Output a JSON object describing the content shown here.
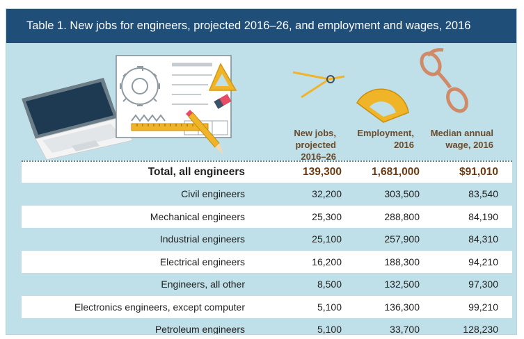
{
  "title": "Table 1. New jobs for engineers, projected 2016–26, and employment and wages, 2016",
  "columns": {
    "new_jobs": [
      "New jobs, projected",
      "2016–26"
    ],
    "employment": [
      "Employment,",
      "2016"
    ],
    "wage": [
      "Median annual",
      "wage, 2016"
    ]
  },
  "chart_data": {
    "type": "table",
    "title": "Table 1. New jobs for engineers, projected 2016–26, and employment and wages, 2016",
    "headers": [
      "",
      "New jobs, projected 2016–26",
      "Employment, 2016",
      "Median annual wage, 2016"
    ],
    "rows": [
      {
        "label": "Total, all engineers",
        "new_jobs": "139,300",
        "employment": "1,681,000",
        "wage": "$91,010"
      },
      {
        "label": "Civil engineers",
        "new_jobs": "32,200",
        "employment": "303,500",
        "wage": "83,540"
      },
      {
        "label": "Mechanical engineers",
        "new_jobs": "25,300",
        "employment": "288,800",
        "wage": "84,190"
      },
      {
        "label": "Industrial engineers",
        "new_jobs": "25,100",
        "employment": "257,900",
        "wage": "84,310"
      },
      {
        "label": "Electrical engineers",
        "new_jobs": "16,200",
        "employment": "188,300",
        "wage": "94,210"
      },
      {
        "label": "Engineers, all other",
        "new_jobs": "8,500",
        "employment": "132,500",
        "wage": "97,300"
      },
      {
        "label": "Electronics engineers, except computer",
        "new_jobs": "5,100",
        "employment": "136,300",
        "wage": "99,210"
      },
      {
        "label": "Petroleum engineers",
        "new_jobs": "5,100",
        "employment": "33,700",
        "wage": "128,230"
      }
    ]
  },
  "colors": {
    "title_bg": "#1f4e79",
    "panel_bg": "#bfe0e8",
    "header_text": "#6b4b2a"
  },
  "illustration_icons": [
    "laptop-icon",
    "blueprint-icon",
    "gear-icon",
    "set-square-icon",
    "eraser-icon",
    "ruler-icon",
    "pencil-icon",
    "compass-icon",
    "protractor-icon",
    "glasses-icon"
  ]
}
